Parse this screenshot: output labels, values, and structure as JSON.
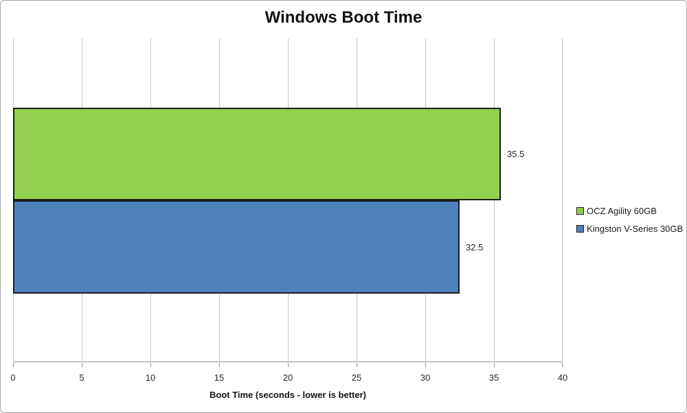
{
  "chart_data": {
    "type": "bar",
    "orientation": "horizontal",
    "title": "Windows Boot Time",
    "xlabel": "Boot Time (seconds - lower is better)",
    "xlim": [
      0,
      40
    ],
    "x_ticks": [
      0,
      5,
      10,
      15,
      20,
      25,
      30,
      35,
      40
    ],
    "grid": true,
    "legend_position": "right",
    "series": [
      {
        "name": "OCZ Agility 60GB",
        "value": 35.5,
        "data_label": "35.5",
        "color": "#92D050"
      },
      {
        "name": "Kingston V-Series 30GB",
        "value": 32.5,
        "data_label": "32.5",
        "color": "#4F81BD"
      }
    ]
  },
  "colors": {
    "grid_line": "#C6C6C6",
    "axis_line": "#8C8C8C",
    "chart_border": "#A6A6A6",
    "bar_border": "#1C1C1C",
    "background": "#FFFFFF",
    "text": "#1A1A1A"
  }
}
